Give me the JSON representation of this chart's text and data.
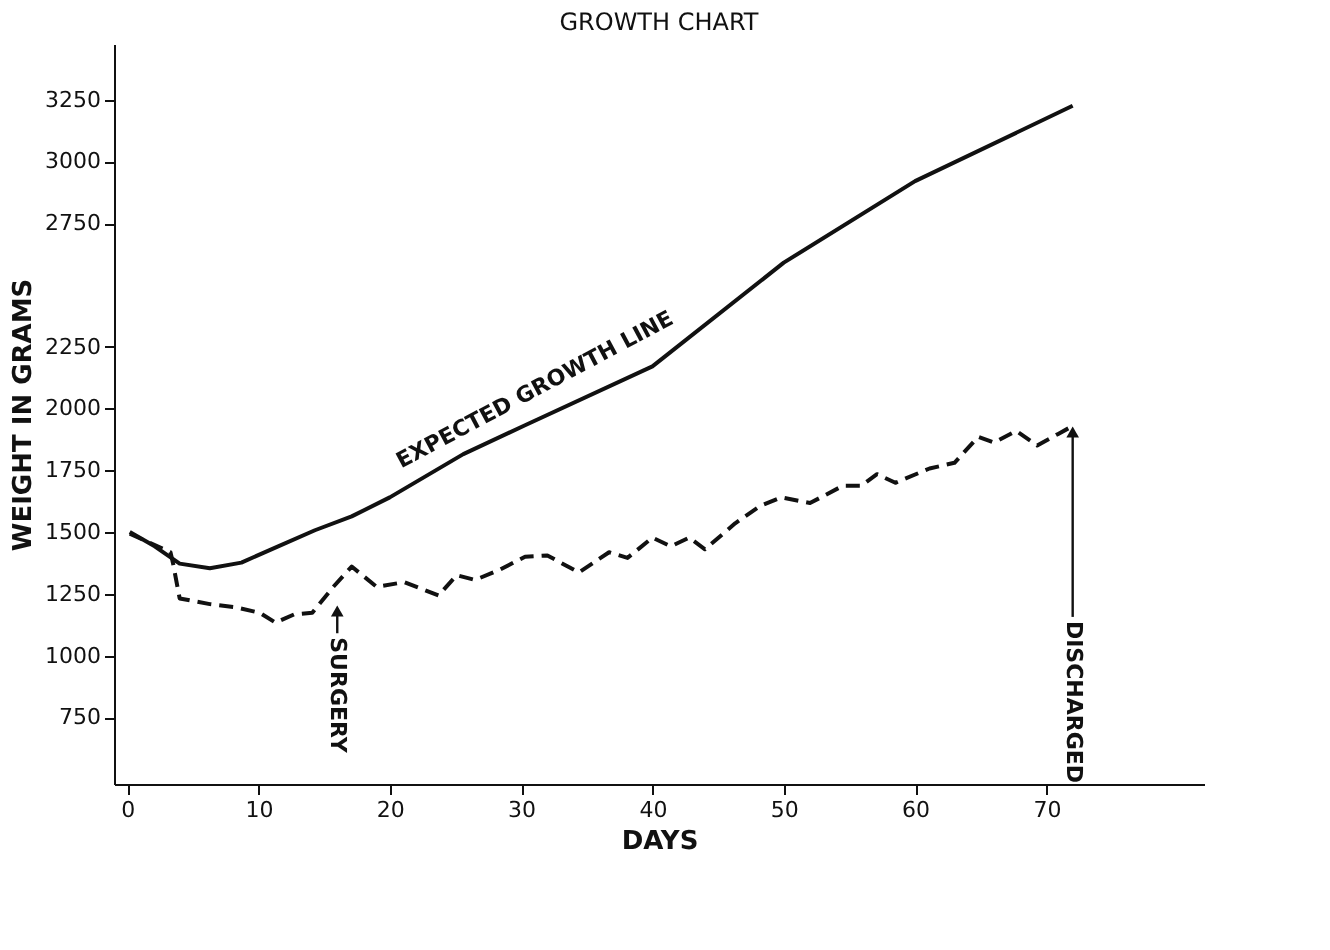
{
  "chart_data": {
    "type": "line",
    "title": "GROWTH CHART",
    "xlabel": "DAYS",
    "ylabel": "WEIGHT IN GRAMS",
    "xlim": [
      -1,
      82
    ],
    "xticks": [
      0,
      10,
      20,
      30,
      40,
      50,
      60,
      70
    ],
    "ylim": [
      480,
      3475
    ],
    "yticks": [
      750,
      1000,
      1250,
      1500,
      1750,
      2000,
      2250,
      2750,
      3000,
      3250
    ],
    "grid": false,
    "marker": "none",
    "series": [
      {
        "color": "#111111",
        "line_style": "solid",
        "x": [
          0.2,
          2.1,
          4,
          6.3,
          8.7,
          11.5,
          14.3,
          17.1,
          20,
          25.6,
          30.3,
          40,
          50,
          60,
          72
        ],
        "values": [
          1500,
          1442,
          1372,
          1353,
          1376,
          1442,
          1507,
          1563,
          1640,
          1815,
          1932,
          2170,
          2590,
          2920,
          3225
        ]
      },
      {
        "color": "#111111",
        "line_style": "dashed",
        "x": [
          0.2,
          3.3,
          3.5,
          4,
          6.3,
          8.2,
          10.1,
          11.3,
          12.7,
          14.1,
          15.7,
          17.1,
          19,
          21.1,
          23.7,
          25.1,
          26.5,
          28.4,
          30.3,
          32,
          34.4,
          36.7,
          38.1,
          40,
          41.4,
          42.8,
          44,
          46.3,
          48.2,
          49.8,
          52,
          54.5,
          55.9,
          57.1,
          58.5,
          61.1,
          63,
          64.8,
          66,
          67.7,
          69.3,
          70.9,
          72.1
        ],
        "values": [
          1493,
          1418,
          1372,
          1231,
          1208,
          1196,
          1173,
          1133,
          1166,
          1173,
          1278,
          1360,
          1278,
          1297,
          1243,
          1325,
          1306,
          1348,
          1400,
          1405,
          1336,
          1418,
          1395,
          1477,
          1442,
          1477,
          1430,
          1535,
          1605,
          1640,
          1617,
          1687,
          1687,
          1734,
          1699,
          1757,
          1780,
          1885,
          1862,
          1909,
          1850,
          1897,
          1932
        ]
      }
    ],
    "annotations": [
      {
        "text": "EXPECTED GROWTH LINE",
        "x": 32,
        "y": 1980
      },
      {
        "text": "SURGERY",
        "x": 16,
        "y": 1180
      },
      {
        "text": "DISCHARGED",
        "x": 72,
        "y": 1905
      }
    ]
  }
}
